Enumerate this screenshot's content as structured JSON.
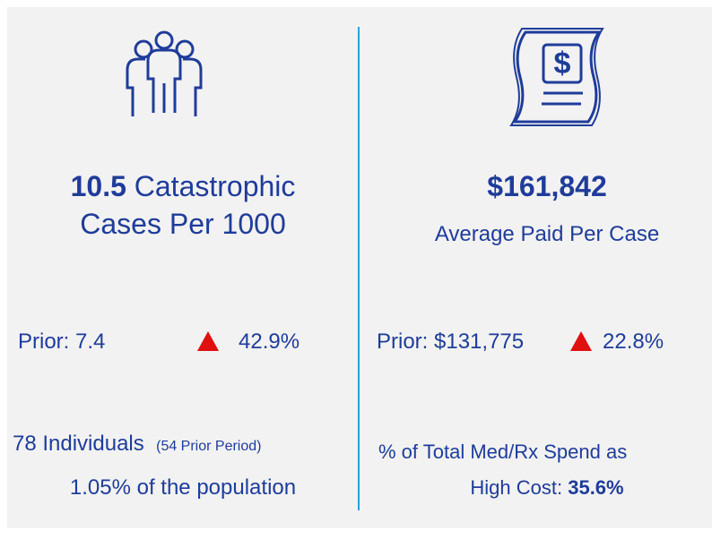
{
  "left": {
    "headline_value": "10.5",
    "headline_text": "Catastrophic",
    "headline_line2": "Cases Per 1000",
    "prior": "Prior: 7.4",
    "change": "42.9%",
    "individuals": "78 Individuals",
    "prior_period": "(54 Prior Period)",
    "population": "1.05% of the population"
  },
  "right": {
    "headline_value": "$161,842",
    "headline_text": "Average Paid Per Case",
    "prior": "Prior: $131,775",
    "change": "22.8%",
    "spend_line1": "% of Total Med/Rx Spend as",
    "spend_label": "High Cost:",
    "spend_value": "35.6%"
  }
}
